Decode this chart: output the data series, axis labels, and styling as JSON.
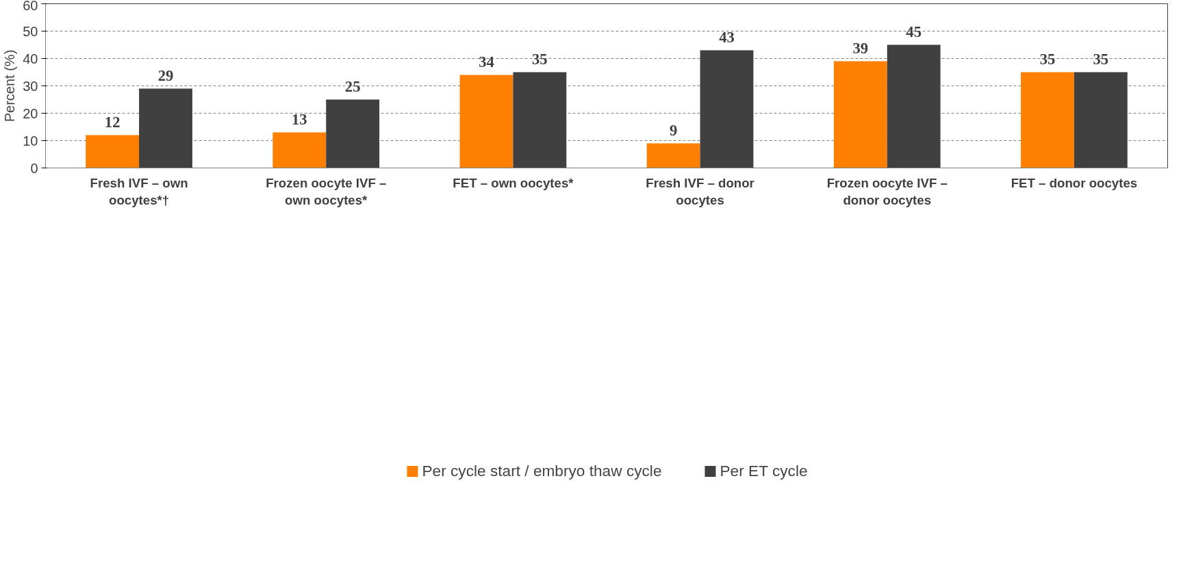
{
  "chart_data": {
    "type": "bar",
    "ylabel": "Percent (%)",
    "categories": [
      "Fresh IVF – own oocytes*†",
      "Frozen oocyte IVF – own oocytes*",
      "FET – own oocytes*",
      "Fresh IVF – donor oocytes",
      "Frozen oocyte IVF – donor oocytes",
      "FET – donor oocytes"
    ],
    "series": [
      {
        "name": "Per cycle start / embryo thaw cycle",
        "color": "#ff7f00",
        "values": [
          12,
          13,
          34,
          9,
          39,
          35
        ]
      },
      {
        "name": "Per ET cycle",
        "color": "#404040",
        "values": [
          29,
          25,
          35,
          43,
          45,
          35
        ]
      }
    ],
    "ylim": [
      0,
      60
    ],
    "yticks": [
      0,
      10,
      20,
      30,
      40,
      50,
      60
    ],
    "grid": "y",
    "legend": "bottom",
    "data_labels": true
  }
}
